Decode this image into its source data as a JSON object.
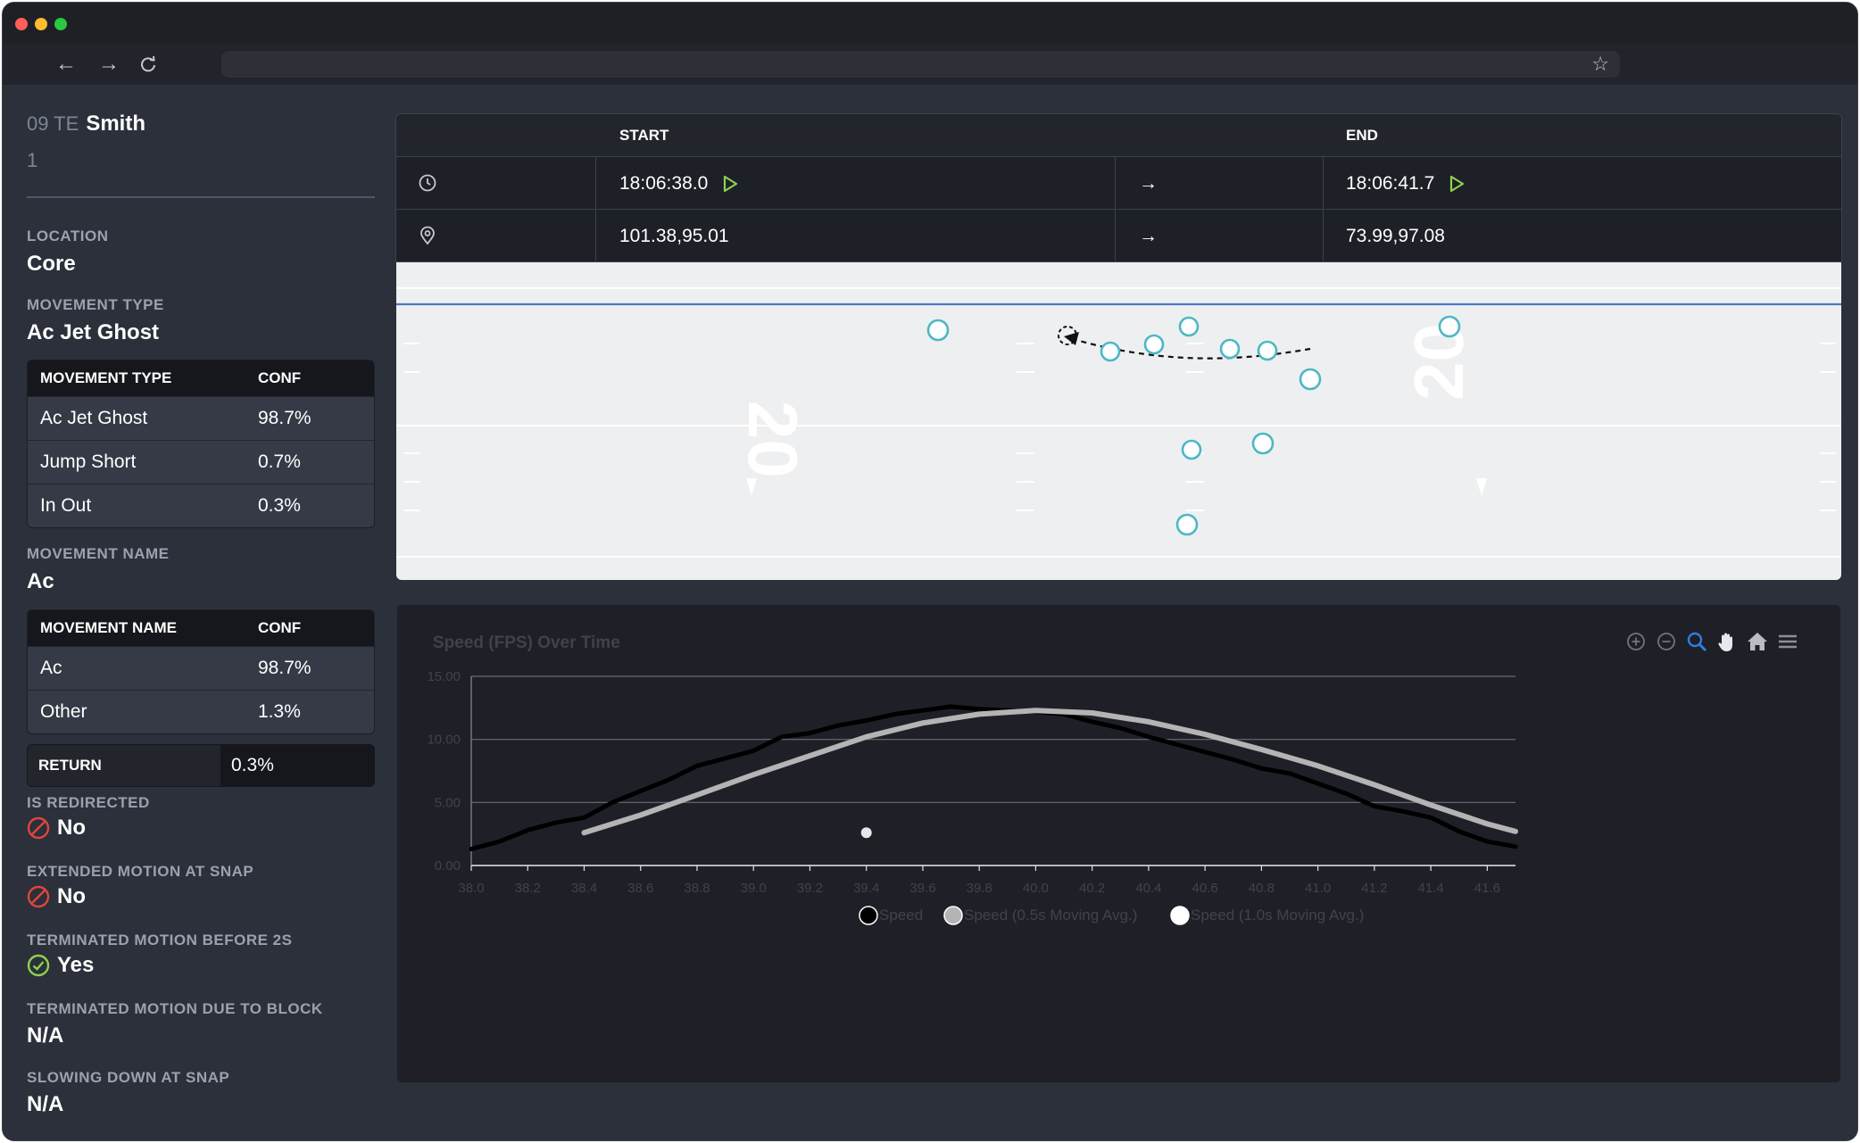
{
  "player": {
    "position": "09 TE",
    "name": "Smith",
    "number": "1"
  },
  "location": {
    "label": "LOCATION",
    "value": "Core"
  },
  "movement_type": {
    "label": "MOVEMENT TYPE",
    "value": "Ac Jet Ghost",
    "table": {
      "headers": [
        "MOVEMENT TYPE",
        "CONF"
      ],
      "rows": [
        {
          "name": "Ac Jet Ghost",
          "conf": "98.7%"
        },
        {
          "name": "Jump Short",
          "conf": "0.7%"
        },
        {
          "name": "In Out",
          "conf": "0.3%"
        }
      ]
    }
  },
  "movement_name": {
    "label": "MOVEMENT NAME",
    "value": "Ac",
    "table": {
      "headers": [
        "MOVEMENT NAME",
        "CONF"
      ],
      "rows": [
        {
          "name": "Ac",
          "conf": "98.7%"
        },
        {
          "name": "Other",
          "conf": "1.3%"
        }
      ]
    }
  },
  "return": {
    "label": "RETURN",
    "value": "0.3%"
  },
  "is_redirected": {
    "label": "IS REDIRECTED",
    "value": "No"
  },
  "extended_motion": {
    "label": "EXTENDED MOTION AT SNAP",
    "value": "No"
  },
  "terminated_before_2s": {
    "label": "TERMINATED MOTION BEFORE 2S",
    "value": "Yes"
  },
  "terminated_due_block": {
    "label": "TERMINATED MOTION DUE TO BLOCK",
    "value": "N/A"
  },
  "slowing_down": {
    "label": "SLOWING DOWN AT SNAP",
    "value": "N/A"
  },
  "event_table": {
    "start_header": "START",
    "end_header": "END",
    "time_start": "18:06:38.0",
    "time_end": "18:06:41.7",
    "loc_start": "101.38,95.01",
    "loc_end": "73.99,97.08",
    "arrow": "→"
  },
  "field": {
    "yard_labels": [
      "20",
      "20"
    ],
    "line_of_scrimmage_color": "#4a78c8"
  },
  "colors": {
    "accent_green": "#8fd14f",
    "no_red": "#e0453c",
    "yes_green": "#8fd14f",
    "player_marker": "#4bb8c4"
  },
  "chart_data": {
    "type": "line",
    "title": "Speed (FPS) Over Time",
    "x_ticks": [
      "38.0",
      "38.2",
      "38.4",
      "38.6",
      "38.8",
      "39.0",
      "39.2",
      "39.4",
      "39.6",
      "39.8",
      "40.0",
      "40.2",
      "40.4",
      "40.6",
      "40.8",
      "41.0",
      "41.2",
      "41.4",
      "41.6"
    ],
    "y_ticks": [
      "0.00",
      "5.00",
      "10.00",
      "15.00"
    ],
    "xlim": [
      38.0,
      41.7
    ],
    "ylim": [
      0,
      15
    ],
    "grid": true,
    "legend_position": "bottom-center",
    "series": [
      {
        "name": "Speed",
        "color": "#000000",
        "x": [
          38.0,
          38.1,
          38.2,
          38.3,
          38.4,
          38.5,
          38.6,
          38.7,
          38.8,
          38.9,
          39.0,
          39.1,
          39.2,
          39.3,
          39.4,
          39.5,
          39.6,
          39.7,
          39.8,
          39.9,
          40.0,
          40.1,
          40.2,
          40.3,
          40.4,
          40.5,
          40.6,
          40.7,
          40.8,
          40.9,
          41.0,
          41.1,
          41.2,
          41.3,
          41.4,
          41.5,
          41.6,
          41.7
        ],
        "y": [
          1.3,
          1.9,
          2.8,
          3.4,
          3.8,
          5.0,
          5.9,
          6.8,
          7.9,
          8.5,
          9.1,
          10.2,
          10.5,
          11.1,
          11.5,
          12.0,
          12.3,
          12.6,
          12.4,
          12.3,
          12.2,
          12.0,
          11.4,
          10.9,
          10.2,
          9.6,
          9.0,
          8.4,
          7.7,
          7.3,
          6.5,
          5.7,
          4.7,
          4.3,
          3.8,
          2.7,
          1.9,
          1.5
        ]
      },
      {
        "name": "Speed (0.5s Moving Avg.)",
        "color": "#b4b4b4",
        "x": [
          38.4,
          38.6,
          38.8,
          39.0,
          39.2,
          39.4,
          39.6,
          39.8,
          40.0,
          40.2,
          40.4,
          40.6,
          40.8,
          41.0,
          41.2,
          41.4,
          41.6,
          41.7
        ],
        "y": [
          2.6,
          4.0,
          5.6,
          7.2,
          8.7,
          10.2,
          11.3,
          12.0,
          12.3,
          12.1,
          11.4,
          10.4,
          9.2,
          7.9,
          6.4,
          4.8,
          3.3,
          2.7
        ]
      },
      {
        "name": "Speed (1.0s Moving Avg.)",
        "color": "#ffffff",
        "x": [
          39.4
        ],
        "y": [
          2.6
        ]
      }
    ]
  }
}
